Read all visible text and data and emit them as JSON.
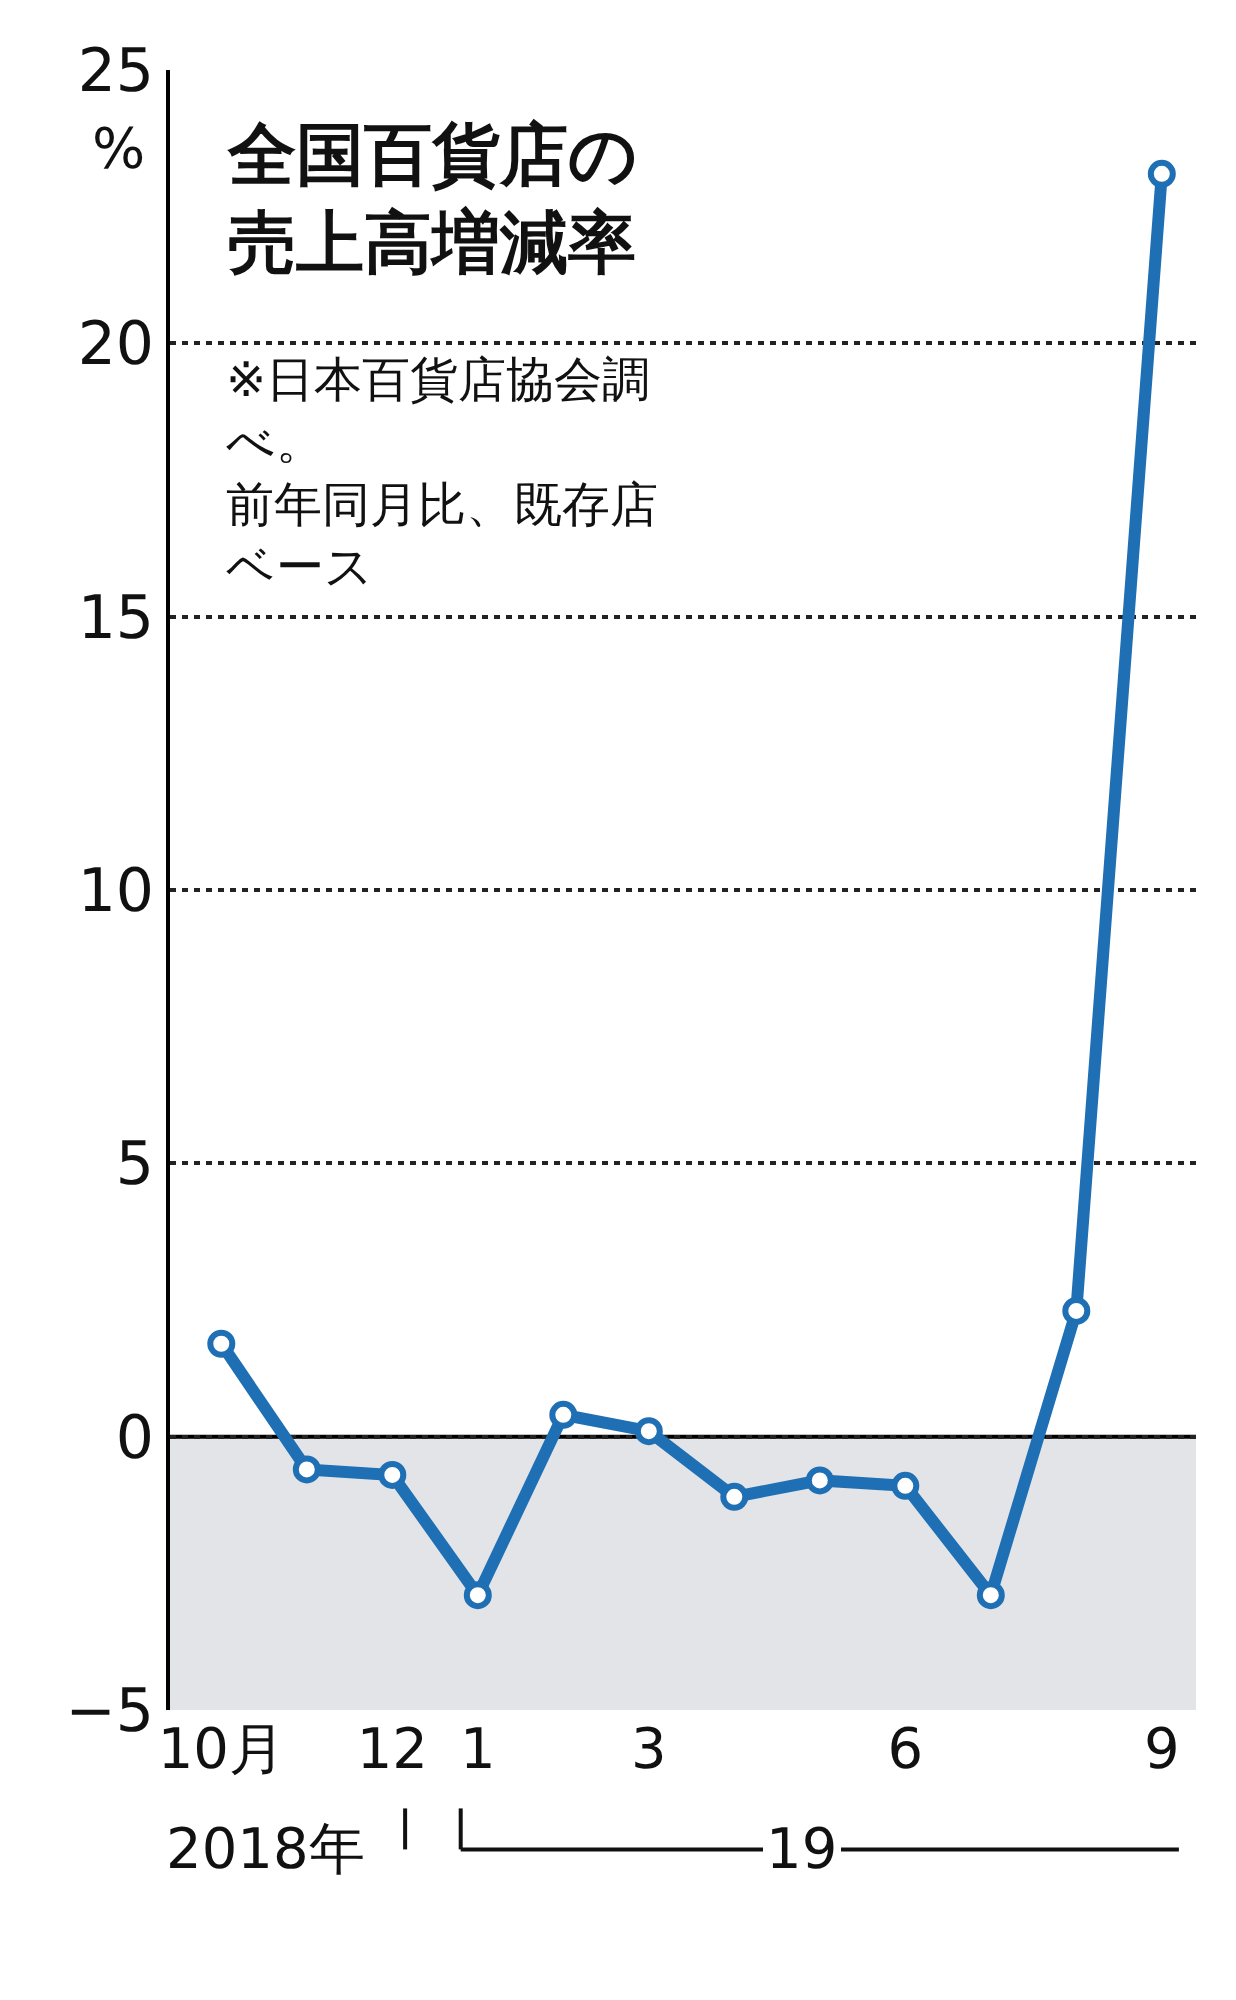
{
  "chart_data": {
    "type": "line",
    "title": "全国百貨店の売上高増減率",
    "subtitle": "※日本百貨店協会調べ。前年同月比、既存店ベース",
    "ylabel": "%",
    "categories": [
      "10月",
      null,
      "12",
      "1",
      null,
      "3",
      null,
      null,
      "6",
      null,
      null,
      "9"
    ],
    "series": [
      {
        "color": "#1f6fb4",
        "values": [
          1.7,
          -0.6,
          -0.7,
          -2.9,
          0.4,
          0.1,
          -1.1,
          -0.8,
          -0.9,
          -2.9,
          2.3,
          23.1
        ]
      }
    ],
    "ylim": [
      -5,
      25
    ],
    "yticks": [
      {
        "value": -5,
        "label": "−5"
      },
      0,
      5,
      10,
      15,
      20,
      25
    ],
    "grid": "y",
    "marker": "circle",
    "line_style": "solid",
    "bands": [
      {
        "axis": "y",
        "from": -5,
        "to": 0,
        "color": "#e2e4e7"
      }
    ],
    "ref_lines": [
      {
        "axis": "y",
        "value": 0,
        "color": "#000000",
        "line_style": "solid"
      }
    ],
    "annotations": [
      "2018年",
      "19"
    ]
  }
}
